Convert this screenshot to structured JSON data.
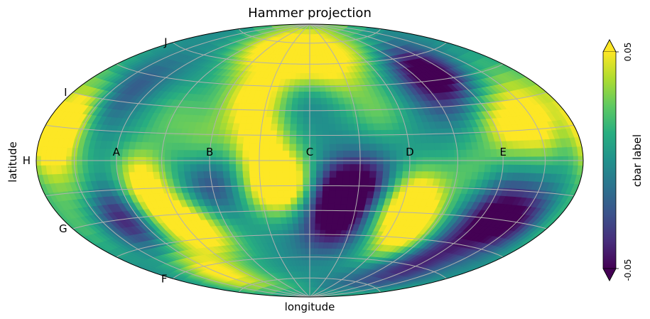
{
  "chart_data": {
    "type": "heatmap",
    "projection": "hammer",
    "title": "Hammer projection",
    "xlabel": "longitude",
    "ylabel": "latitude",
    "grid": true,
    "longitude_labels": [
      {
        "text": "A",
        "lon_deg": -120
      },
      {
        "text": "B",
        "lon_deg": -60
      },
      {
        "text": "C",
        "lon_deg": 0
      },
      {
        "text": "D",
        "lon_deg": 60
      },
      {
        "text": "E",
        "lon_deg": 120
      }
    ],
    "latitude_labels": [
      {
        "text": "F",
        "lat_deg": -60
      },
      {
        "text": "G",
        "lat_deg": -30
      },
      {
        "text": "H",
        "lat_deg": 0
      },
      {
        "text": "I",
        "lat_deg": 30
      },
      {
        "text": "J",
        "lat_deg": 60
      }
    ],
    "colorbar": {
      "label": "cbar label",
      "colormap": "viridis",
      "vmin": -0.05,
      "vmax": 0.05,
      "tick_labels": [
        "-0.05",
        "0.05"
      ],
      "extend": "both"
    },
    "hotspots": [
      {
        "lon": -170,
        "lat": 8,
        "v": 0.05
      },
      {
        "lon": -160,
        "lat": 22,
        "v": 0.045
      },
      {
        "lon": -150,
        "lat": -10,
        "v": 0.02
      },
      {
        "lon": -130,
        "lat": -30,
        "v": -0.05
      },
      {
        "lon": -140,
        "lat": 35,
        "v": -0.03
      },
      {
        "lon": -105,
        "lat": -10,
        "v": 0.05
      },
      {
        "lon": -100,
        "lat": -30,
        "v": 0.04
      },
      {
        "lon": -80,
        "lat": -40,
        "v": 0.05
      },
      {
        "lon": -65,
        "lat": 12,
        "v": 0.025
      },
      {
        "lon": -60,
        "lat": -15,
        "v": -0.03
      },
      {
        "lon": -30,
        "lat": 12,
        "v": 0.05
      },
      {
        "lon": -40,
        "lat": 38,
        "v": 0.05
      },
      {
        "lon": -25,
        "lat": -15,
        "v": 0.05
      },
      {
        "lon": -10,
        "lat": -12,
        "v": 0.045
      },
      {
        "lon": 15,
        "lat": -18,
        "v": -0.05
      },
      {
        "lon": 35,
        "lat": -15,
        "v": -0.05
      },
      {
        "lon": 18,
        "lat": -38,
        "v": -0.05
      },
      {
        "lon": 20,
        "lat": 55,
        "v": 0.045
      },
      {
        "lon": -15,
        "lat": 58,
        "v": 0.035
      },
      {
        "lon": 45,
        "lat": 30,
        "v": 0.025
      },
      {
        "lon": 70,
        "lat": -20,
        "v": 0.045
      },
      {
        "lon": 55,
        "lat": -28,
        "v": 0.04
      },
      {
        "lon": 75,
        "lat": -45,
        "v": 0.05
      },
      {
        "lon": 110,
        "lat": 50,
        "v": -0.05
      },
      {
        "lon": 125,
        "lat": 18,
        "v": 0.045
      },
      {
        "lon": 150,
        "lat": 18,
        "v": 0.05
      },
      {
        "lon": 125,
        "lat": -28,
        "v": -0.05
      },
      {
        "lon": 150,
        "lat": -30,
        "v": -0.04
      },
      {
        "lon": 110,
        "lat": -60,
        "v": -0.045
      },
      {
        "lon": -120,
        "lat": -65,
        "v": 0.05
      },
      {
        "lon": -60,
        "lat": 70,
        "v": 0.045
      },
      {
        "lon": 60,
        "lat": 70,
        "v": 0.03
      },
      {
        "lon": 0,
        "lat": 42,
        "v": -0.015
      },
      {
        "lon": -175,
        "lat": -30,
        "v": 0.02
      },
      {
        "lon": 165,
        "lat": 35,
        "v": 0.02
      },
      {
        "lon": 90,
        "lat": 40,
        "v": -0.03
      },
      {
        "lon": -90,
        "lat": 25,
        "v": 0.02
      },
      {
        "lon": 100,
        "lat": -5,
        "v": 0.02
      }
    ]
  }
}
